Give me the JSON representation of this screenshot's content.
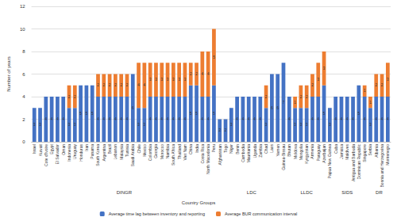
{
  "chart_data": {
    "type": "bar",
    "stacked": true,
    "data_labels": true,
    "grid": true,
    "legend": "bottom",
    "y_label": "Number of years",
    "x_label": "Country Groups",
    "ylim": [
      0,
      12
    ],
    "yticks": [
      0,
      2,
      4,
      6,
      8,
      10,
      12
    ],
    "groups": [
      {
        "label": "DINGR",
        "categories": [
          "Israel",
          "Kuwait",
          "Cote d'Ivoire",
          "Egypt",
          "El Salvador",
          "Oman",
          "Indonesia",
          "Uruguay",
          "Honduras",
          "Iran",
          "Panama",
          "South Korea",
          "Argentina",
          "Brazil",
          "Lebanon",
          "Malaysia",
          "Tunisia",
          "Saudi Arabia",
          "Chile",
          "Mexico",
          "Colombia",
          "Georgia",
          "Morocco",
          "Namibia",
          "South Africa",
          "Thailand",
          "Viet Nam",
          "China",
          "India",
          "Costa Rica",
          "North Macedonia",
          "Peru"
        ]
      },
      {
        "label": "LDC",
        "categories": [
          "Afghanistan",
          "Togo",
          "Niger",
          "Benin",
          "Cambodia",
          "Mauritania",
          "Uganda",
          "Zambia",
          "Chad",
          "Laos",
          "Yemen",
          "Guinea-Bissau"
        ]
      },
      {
        "label": "LLDC",
        "categories": [
          "Bhutan",
          "Moldova",
          "Mongolia",
          "Kyrgyzstan",
          "Armenia",
          "Paraguay",
          "Azerbaijan"
        ]
      },
      {
        "label": "SIDS",
        "categories": [
          "Papua New Guinea",
          "Cuba",
          "Jamaica",
          "Maldives",
          "Antigua and Barbuda",
          "Dominican Republic",
          "Singapore"
        ]
      },
      {
        "label": "DR",
        "categories": [
          "Serbia",
          "Albania",
          "Bosnia and Herzegovina",
          "Montenegro"
        ]
      }
    ],
    "series": [
      {
        "name": "Average time lag between inventory and reporting",
        "color": "#4472c4",
        "values": [
          3,
          3,
          4,
          4,
          4,
          4,
          3,
          3,
          5,
          5,
          5,
          4,
          4,
          4,
          4,
          4,
          4,
          6,
          3,
          3,
          4,
          4,
          4,
          4,
          4,
          4,
          4,
          5,
          5,
          4,
          4,
          5,
          2,
          2,
          3,
          4,
          4,
          4,
          4,
          4,
          3,
          6,
          6,
          7,
          4,
          3,
          3,
          3,
          4,
          4,
          5,
          3,
          4,
          4,
          4,
          4,
          5,
          4,
          3,
          4,
          4,
          4
        ]
      },
      {
        "name": "Average BUR communication interval",
        "color": "#ed7d31",
        "values": [
          null,
          null,
          null,
          null,
          null,
          null,
          2,
          2,
          null,
          null,
          null,
          2,
          2,
          2,
          2,
          2,
          2,
          null,
          4,
          4,
          3,
          3,
          3,
          3,
          3,
          3,
          3,
          2,
          2,
          4,
          4,
          5,
          null,
          null,
          null,
          null,
          null,
          null,
          null,
          null,
          2,
          null,
          null,
          null,
          null,
          1,
          2,
          2,
          2,
          3,
          3,
          null,
          null,
          null,
          null,
          null,
          null,
          1,
          1,
          2,
          2,
          3
        ]
      }
    ]
  }
}
